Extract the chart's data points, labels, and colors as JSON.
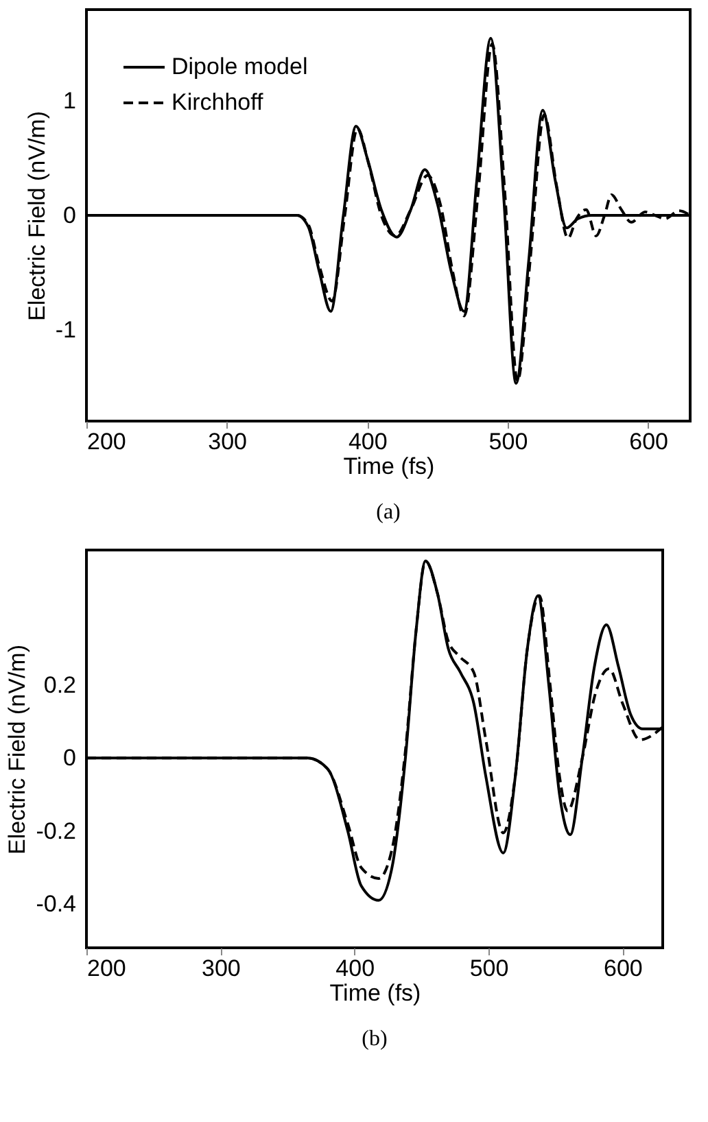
{
  "chart_data": [
    {
      "type": "line",
      "xlabel": "Time (fs)",
      "ylabel": "Electric Field (nV/m)",
      "annotations": [
        "(a)"
      ],
      "xlim": [
        200,
        630
      ],
      "ylim": [
        -1.8,
        1.8
      ],
      "xticks": [
        200,
        300,
        400,
        500,
        600
      ],
      "yticks": [
        -1,
        0,
        1
      ],
      "grid": false,
      "legend": "top left",
      "series": [
        {
          "name": "Dipole model",
          "color": "#000000",
          "line_style": "solid",
          "x": [
            200,
            350,
            358,
            366,
            374,
            383,
            392,
            400,
            410,
            421,
            431,
            441,
            450,
            460,
            469,
            478,
            488,
            497,
            506,
            515,
            525,
            534,
            542,
            550,
            560,
            630
          ],
          "values": [
            0,
            0,
            -0.1,
            -0.5,
            -0.84,
            0,
            0.78,
            0.5,
            0.05,
            -0.19,
            0.05,
            0.4,
            0.1,
            -0.5,
            -0.84,
            0.3,
            1.55,
            0.2,
            -1.47,
            -0.4,
            0.92,
            0.3,
            -0.11,
            -0.03,
            0,
            0
          ]
        },
        {
          "name": "Kirchhoff",
          "color": "#000000",
          "line_style": "dashed",
          "x": [
            200,
            350,
            358,
            366,
            375,
            384,
            393,
            401,
            410,
            420,
            431,
            443,
            452,
            461,
            469,
            479,
            489,
            498,
            507,
            516,
            526,
            535,
            543,
            549,
            556,
            563,
            569,
            574,
            581,
            588,
            598,
            605,
            612,
            622,
            630
          ],
          "values": [
            0,
            0,
            -0.08,
            -0.45,
            -0.75,
            0,
            0.76,
            0.45,
            0,
            -0.18,
            0.05,
            0.35,
            0.1,
            -0.5,
            -0.88,
            0.2,
            1.5,
            0.2,
            -1.45,
            -0.4,
            0.88,
            0.25,
            -0.2,
            -0.03,
            0.05,
            -0.18,
            0,
            0.18,
            0.05,
            -0.06,
            0.03,
            0,
            -0.03,
            0.04,
            0
          ]
        }
      ]
    },
    {
      "type": "line",
      "xlabel": "Time (fs)",
      "ylabel": "Electric Field (nV/m)",
      "annotations": [
        "(b)"
      ],
      "xlim": [
        200,
        630
      ],
      "ylim": [
        -0.52,
        0.57
      ],
      "xticks": [
        200,
        300,
        400,
        500,
        600
      ],
      "yticks": [
        -0.4,
        -0.2,
        0,
        0.2
      ],
      "grid": false,
      "legend": "top left",
      "series": [
        {
          "name": "Dipole model",
          "color": "#000000",
          "line_style": "solid",
          "x": [
            200,
            365,
            380,
            395,
            405,
            418,
            428,
            438,
            446,
            453,
            462,
            470,
            479,
            489,
            498,
            511,
            520,
            529,
            537,
            545,
            553,
            561,
            570,
            579,
            588,
            597,
            606,
            615,
            630
          ],
          "values": [
            0,
            0,
            -0.03,
            -0.2,
            -0.35,
            -0.39,
            -0.3,
            0,
            0.35,
            0.54,
            0.45,
            0.3,
            0.235,
            0.15,
            -0.05,
            -0.26,
            -0.05,
            0.3,
            0.445,
            0.2,
            -0.1,
            -0.21,
            0,
            0.25,
            0.365,
            0.25,
            0.12,
            0.08,
            0.08
          ]
        },
        {
          "name": "Kirchhoff",
          "color": "#000000",
          "line_style": "dashed",
          "x": [
            200,
            365,
            380,
            395,
            405,
            418,
            428,
            438,
            446,
            453,
            462,
            470,
            478,
            489,
            498,
            511,
            520,
            529,
            538,
            546,
            553,
            559,
            570,
            580,
            590,
            600,
            613,
            630
          ],
          "values": [
            0,
            0,
            -0.03,
            -0.18,
            -0.3,
            -0.33,
            -0.25,
            0.02,
            0.35,
            0.54,
            0.45,
            0.32,
            0.28,
            0.235,
            0.05,
            -0.205,
            -0.05,
            0.3,
            0.445,
            0.2,
            -0.05,
            -0.145,
            0,
            0.18,
            0.245,
            0.15,
            0.05,
            0.085
          ]
        }
      ]
    }
  ]
}
